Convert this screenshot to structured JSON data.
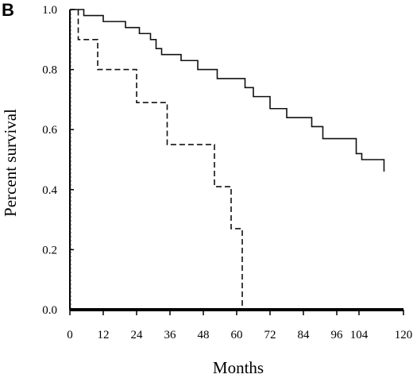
{
  "panel_label": "B",
  "chart_data": {
    "type": "line",
    "xlabel": "Months",
    "ylabel": "Percent survival",
    "xlim": [
      0,
      120
    ],
    "ylim": [
      0,
      1.0
    ],
    "x_ticks": [
      0,
      12,
      24,
      36,
      48,
      60,
      72,
      84,
      96,
      104,
      120
    ],
    "x_tick_labels": [
      "0",
      "12",
      "24",
      "36",
      "48",
      "60",
      "72",
      "84",
      "96",
      "104",
      "120"
    ],
    "y_ticks": [
      0.0,
      0.2,
      0.4,
      0.6,
      0.8,
      1.0
    ],
    "y_tick_labels": [
      "0.0",
      "0.2",
      "0.4",
      "0.6",
      "0.8",
      "1.0"
    ],
    "grid": false,
    "step": true,
    "series": [
      {
        "style": "solid",
        "x": [
          0,
          5,
          12,
          20,
          25,
          29,
          31,
          33,
          40,
          46,
          53,
          63,
          66,
          72,
          78,
          87,
          91,
          103,
          105,
          113
        ],
        "y": [
          1.0,
          0.98,
          0.96,
          0.94,
          0.92,
          0.9,
          0.87,
          0.85,
          0.83,
          0.8,
          0.77,
          0.74,
          0.71,
          0.67,
          0.64,
          0.61,
          0.57,
          0.52,
          0.5,
          0.46
        ]
      },
      {
        "style": "dashed",
        "x": [
          0,
          3,
          10,
          24,
          35,
          52,
          58,
          62
        ],
        "y": [
          1.0,
          0.9,
          0.8,
          0.69,
          0.55,
          0.41,
          0.27,
          0.14
        ]
      }
    ]
  }
}
